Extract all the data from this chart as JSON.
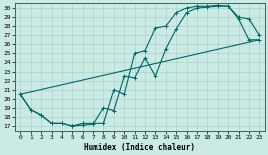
{
  "xlabel": "Humidex (Indice chaleur)",
  "bg_color": "#cceae4",
  "grid_color": "#b0d8d0",
  "line_color": "#006666",
  "xlim": [
    -0.5,
    23.5
  ],
  "ylim": [
    16.5,
    30.5
  ],
  "yticks": [
    17,
    18,
    19,
    20,
    21,
    22,
    23,
    24,
    25,
    26,
    27,
    28,
    29,
    30
  ],
  "xticks": [
    0,
    1,
    2,
    3,
    4,
    5,
    6,
    7,
    8,
    9,
    10,
    11,
    12,
    13,
    14,
    15,
    16,
    17,
    18,
    19,
    20,
    21,
    22,
    23
  ],
  "line1_x": [
    0,
    1,
    2,
    3,
    4,
    5,
    6,
    7,
    8,
    9,
    10,
    11,
    12,
    13,
    14,
    15,
    16,
    17,
    18,
    19,
    20,
    21,
    22,
    23
  ],
  "line1_y": [
    20.5,
    18.8,
    18.2,
    17.3,
    17.3,
    17.0,
    17.1,
    17.2,
    19.0,
    18.7,
    22.5,
    22.3,
    24.5,
    22.5,
    25.5,
    27.7,
    29.5,
    30.0,
    30.1,
    30.2,
    30.2,
    29.0,
    28.8,
    27.0
  ],
  "line2_x": [
    0,
    1,
    2,
    3,
    4,
    5,
    6,
    7,
    8,
    9,
    10,
    11,
    12,
    13,
    14,
    15,
    16,
    17,
    18,
    19,
    20,
    21,
    22,
    23
  ],
  "line2_y": [
    20.5,
    18.8,
    18.2,
    17.3,
    17.3,
    17.0,
    17.3,
    17.3,
    17.3,
    21.0,
    20.5,
    25.0,
    25.3,
    27.8,
    28.0,
    29.5,
    30.0,
    30.2,
    30.2,
    30.3,
    30.2,
    28.8,
    26.5,
    26.5
  ],
  "line3_x": [
    0,
    23
  ],
  "line3_y": [
    20.5,
    26.5
  ]
}
